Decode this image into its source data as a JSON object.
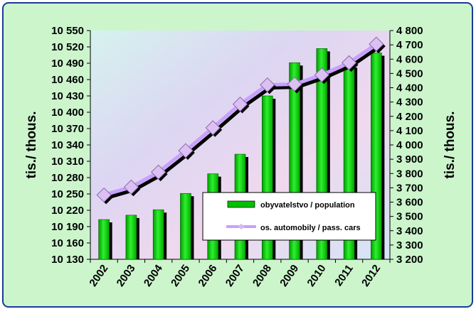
{
  "chart_data": {
    "type": "bar+line",
    "categories": [
      "2002",
      "2003",
      "2004",
      "2005",
      "2006",
      "2007",
      "2008",
      "2009",
      "2010",
      "2011",
      "2012"
    ],
    "series": [
      {
        "name": "obyvatelstvo / population",
        "kind": "bar",
        "axis": "left",
        "color": "#00c000",
        "values": [
          10203,
          10211,
          10221,
          10251,
          10287,
          10323,
          10430,
          10491,
          10517,
          10487,
          10509
        ]
      },
      {
        "name": "os. automobily / pass. cars",
        "kind": "line",
        "axis": "right",
        "color": "#c8a0ff",
        "values": [
          3650,
          3705,
          3810,
          3960,
          4120,
          4285,
          4420,
          4425,
          4490,
          4575,
          4705
        ]
      }
    ],
    "left_axis": {
      "label": "tis./ thous.",
      "min": 10130,
      "max": 10550,
      "step": 30,
      "ticks": [
        "10 130",
        "10 160",
        "10 190",
        "10 220",
        "10 250",
        "10 280",
        "10 310",
        "10 340",
        "10 370",
        "10 400",
        "10 430",
        "10 460",
        "10 490",
        "10 520",
        "10 550"
      ]
    },
    "right_axis": {
      "label": "tis./ thous.",
      "min": 3200,
      "max": 4800,
      "step": 100,
      "ticks": [
        "3 200",
        "3 300",
        "3 400",
        "3 500",
        "3 600",
        "3 700",
        "3 800",
        "3 900",
        "4 000",
        "4 100",
        "4 200",
        "4 300",
        "4 400",
        "4 500",
        "4 600",
        "4 700",
        "4 800"
      ]
    },
    "legend_position": "lower-right inside plot",
    "colors": {
      "frame_bg": "#ccf5cc",
      "frame_border": "#1a3a9a",
      "plot_bg": "#d8d8f0",
      "bar": "#00c000",
      "bar_shadow": "#000000",
      "line": "#c8a0ff",
      "line_shadow": "#000000",
      "marker": "#d9b8f0"
    }
  }
}
